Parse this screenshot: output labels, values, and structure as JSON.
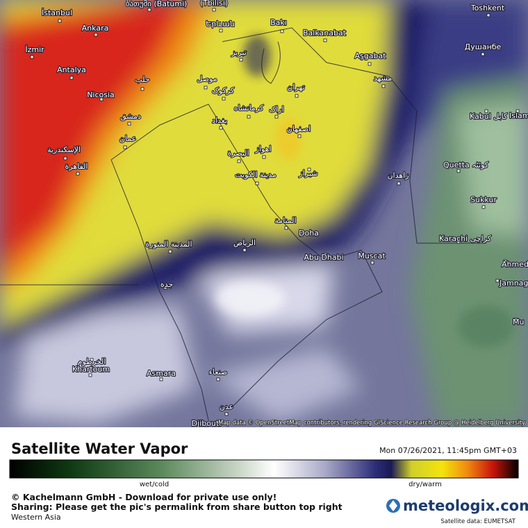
{
  "map": {
    "cities": [
      {
        "name": "İstanbul"
      },
      {
        "name": "Ankara"
      },
      {
        "name": "İzmir"
      },
      {
        "name": "Antalya"
      },
      {
        "name": "Nicosia"
      },
      {
        "name": "ბათუმი (Batumi)"
      },
      {
        "name": "(Tbilisi)"
      },
      {
        "name": "Երևան"
      },
      {
        "name": "Bakı"
      },
      {
        "name": "Balkanabat"
      },
      {
        "name": "Aşgabat"
      },
      {
        "name": "Toshkent"
      },
      {
        "name": "Душанбе"
      },
      {
        "name": "مشهد"
      },
      {
        "name": "تبریز"
      },
      {
        "name": "حلب"
      },
      {
        "name": "موصل"
      },
      {
        "name": "کرکوک"
      },
      {
        "name": "تهران"
      },
      {
        "name": "كرمانشاه"
      },
      {
        "name": "اراک"
      },
      {
        "name": "بغداد"
      },
      {
        "name": "دمشق"
      },
      {
        "name": "اصفهان"
      },
      {
        "name": "عمان"
      },
      {
        "name": "الإسكندرية"
      },
      {
        "name": "اهواز"
      },
      {
        "name": "البصرة"
      },
      {
        "name": "القاهرة"
      },
      {
        "name": "مدينة الكويت"
      },
      {
        "name": "شيراز"
      },
      {
        "name": "زاهدان"
      },
      {
        "name": "Kabul کابل"
      },
      {
        "name": "Islam"
      },
      {
        "name": "Quetta کوئٹہ"
      },
      {
        "name": "Sukkur"
      },
      {
        "name": "المنامة"
      },
      {
        "name": "Doha"
      },
      {
        "name": "المدينة المنورة"
      },
      {
        "name": "الرياض"
      },
      {
        "name": "Karachi کراچی"
      },
      {
        "name": "Abu Dhabi"
      },
      {
        "name": "Muscat"
      },
      {
        "name": "Ahmed"
      },
      {
        "name": "Jamnaga"
      },
      {
        "name": "جدة"
      },
      {
        "name": "Mu"
      },
      {
        "name": "الخرطوم"
      },
      {
        "name": "Khartoum"
      },
      {
        "name": "Asmara"
      },
      {
        "name": "صنعاء"
      },
      {
        "name": "عدن"
      },
      {
        "name": "Djibouti"
      }
    ],
    "attribution": "Map data © OpenStreetMap contributors, rendering GIScience Research Group @ Heidelberg University"
  },
  "footer": {
    "title": "Satellite Water Vapor",
    "timestamp": "Mon 07/26/2021, 11:45pm GMT+03",
    "legend": {
      "low_label": "wet/cold",
      "high_label": "dry/warm"
    },
    "copyright": "© Kachelmann GmbH - Download for private use only!",
    "sharing": "Sharing: Please get the pic's permalink from share button top right",
    "region": "Western Asia",
    "brand": "meteologix.com",
    "source": "Satellite data: EUMETSAT"
  }
}
